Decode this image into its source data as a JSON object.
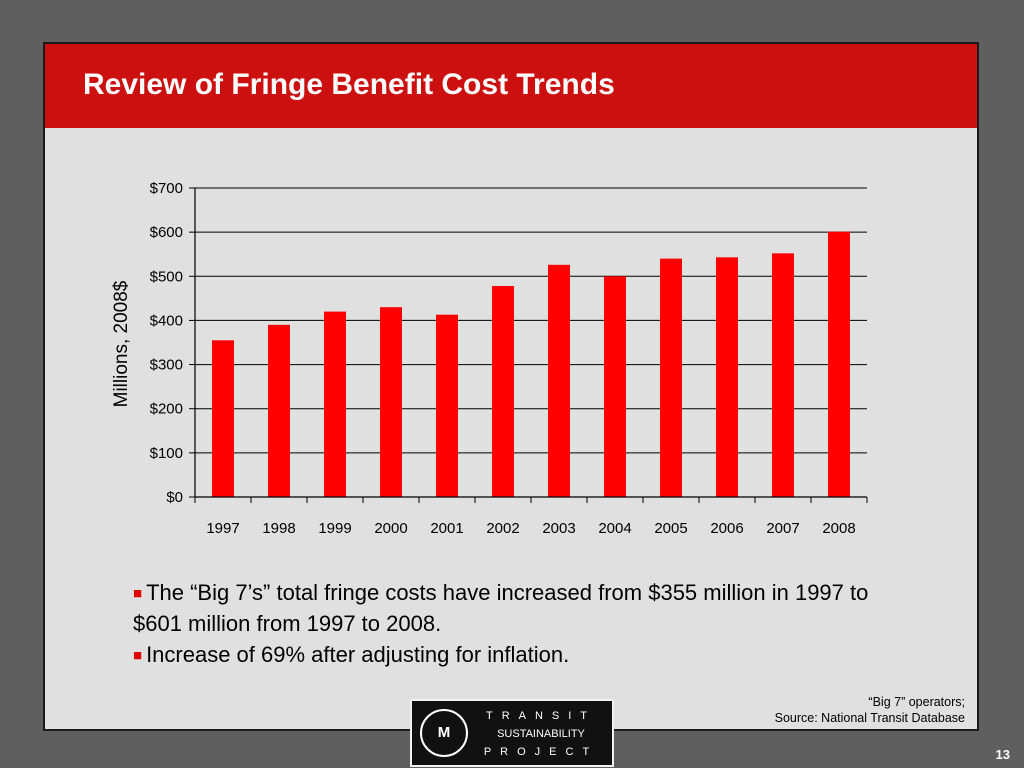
{
  "slide": {
    "title": "Review of Fringe Benefit Cost Trends",
    "bullets": [
      "The “Big 7’s” total fringe costs have increased from $355 million in 1997 to $601 million from 1997 to 2008.",
      "Increase of 69% after adjusting for inflation."
    ],
    "source_line1": "“Big 7” operators;",
    "source_line2": "Source: National Transit Database",
    "slide_number": "13"
  },
  "logo": {
    "mark": "M",
    "line1": "TRANSIT",
    "line2": "SUSTAINABILITY",
    "line3": "PROJECT"
  },
  "colors": {
    "title_bar": "#cc1010",
    "bar": "#ff0000",
    "bullet": "#e00000",
    "slide_bg": "#e0e0e0",
    "outer_bg": "#5f5f5f"
  },
  "chart_data": {
    "type": "bar",
    "categories": [
      "1997",
      "1998",
      "1999",
      "2000",
      "2001",
      "2002",
      "2003",
      "2004",
      "2005",
      "2006",
      "2007",
      "2008"
    ],
    "values": [
      355,
      390,
      420,
      430,
      413,
      478,
      526,
      500,
      540,
      543,
      552,
      601
    ],
    "ylabel": "Millions, 2008$",
    "ylim": [
      0,
      700
    ],
    "yticks": [
      "$0",
      "$100",
      "$200",
      "$300",
      "$400",
      "$500",
      "$600",
      "$700"
    ],
    "grid": true,
    "legend": false
  }
}
